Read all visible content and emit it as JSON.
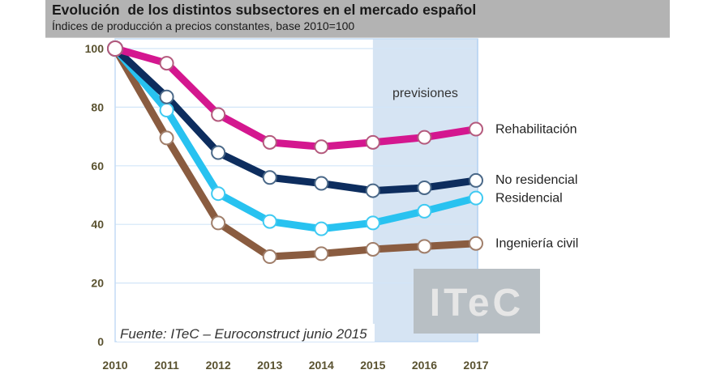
{
  "header": {
    "title": "Evolución  de los distintos subsectores en el mercado español",
    "subtitle": "Índices de producción a precios constantes, base 2010=100"
  },
  "chart_data": {
    "type": "line",
    "title": "Evolución  de los distintos subsectores en el mercado español",
    "subtitle": "Índices de producción a precios constantes, base 2010=100",
    "xlabel": "",
    "ylabel": "",
    "x": [
      "2010",
      "2011",
      "2012",
      "2013",
      "2014",
      "2015",
      "2016",
      "2017"
    ],
    "ylim": [
      0,
      100
    ],
    "yticks": [
      "0",
      "20",
      "40",
      "60",
      "80",
      "100"
    ],
    "grid": "horizontal",
    "legend": "inline-right",
    "forecast_region": {
      "label": "previsiones",
      "from": "2015",
      "to": "2017"
    },
    "series": [
      {
        "name": "Rehabilitación",
        "color": "#d4178f",
        "values": [
          100,
          95,
          77.5,
          68,
          66.5,
          68,
          69.7,
          72.5
        ]
      },
      {
        "name": "No residencial",
        "color": "#0d2d5e",
        "values": [
          100,
          83.5,
          64.5,
          56,
          54,
          51.5,
          52.5,
          55
        ]
      },
      {
        "name": "Residencial",
        "color": "#28c2f0",
        "values": [
          100,
          79,
          50.5,
          41,
          38.5,
          40.5,
          44.5,
          49
        ]
      },
      {
        "name": "Ingeniería civil",
        "color": "#8a5c40",
        "values": [
          100,
          69.5,
          40.5,
          29,
          30,
          31.5,
          32.5,
          33.5
        ]
      }
    ],
    "annotations": {
      "source": "Fuente: ITeC – Euroconstruct junio 2015",
      "logo": "ITeC"
    }
  }
}
